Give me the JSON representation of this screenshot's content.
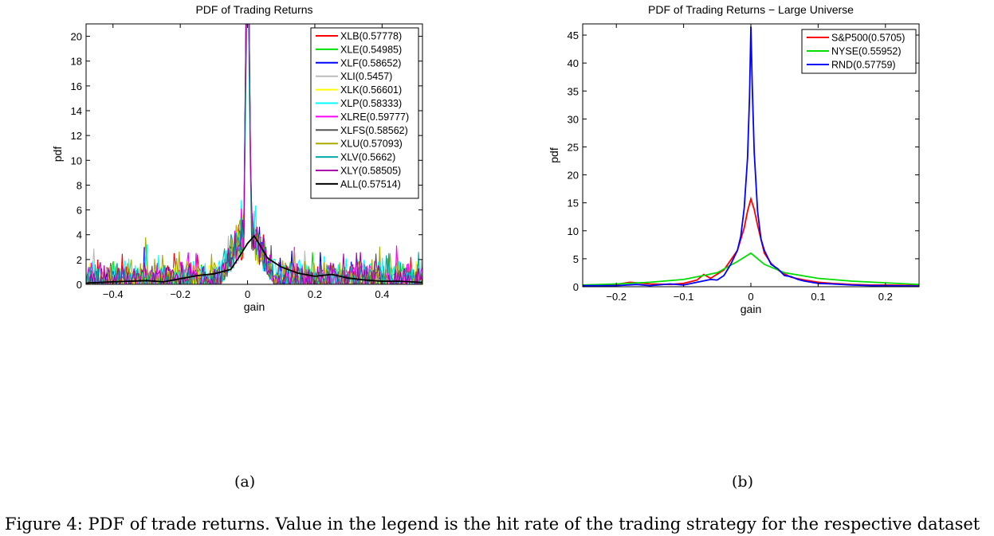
{
  "figure": {
    "caption": "Figure 4: PDF of trade returns. Value in the legend is the hit rate of the trading strategy for the respective dataset",
    "panel_a_label": "(a)",
    "panel_b_label": "(b)"
  },
  "chart_data": [
    {
      "type": "line",
      "title": "PDF of Trading Returns",
      "xlabel": "gain",
      "ylabel": "pdf",
      "xlim": [
        -0.48,
        0.52
      ],
      "ylim": [
        0,
        21
      ],
      "xticks": [
        -0.4,
        -0.2,
        0,
        0.2,
        0.4
      ],
      "xtick_labels": [
        "−0.4",
        "−0.2",
        "0",
        "0.2",
        "0.4"
      ],
      "yticks": [
        0,
        2,
        4,
        6,
        8,
        10,
        12,
        14,
        16,
        18,
        20
      ],
      "yscale": "linear",
      "grid": false,
      "legend_position": "top-right",
      "series": [
        {
          "name": "XLB(0.57778)",
          "color": "#ff0000",
          "noisy": true,
          "peak": 34,
          "noise_amp": 1.1,
          "seed": 11
        },
        {
          "name": "XLE(0.54985)",
          "color": "#00dd00",
          "noisy": true,
          "peak": 30,
          "noise_amp": 1.0,
          "seed": 23
        },
        {
          "name": "XLF(0.58652)",
          "color": "#0000ff",
          "noisy": true,
          "peak": 32,
          "noise_amp": 0.9,
          "seed": 37
        },
        {
          "name": "XLI(0.5457)",
          "color": "#bbbbbb",
          "noisy": true,
          "peak": 26,
          "noise_amp": 0.9,
          "seed": 41
        },
        {
          "name": "XLK(0.56601)",
          "color": "#ffff00",
          "noisy": true,
          "peak": 28,
          "noise_amp": 1.0,
          "seed": 53
        },
        {
          "name": "XLP(0.58333)",
          "color": "#00ffff",
          "noisy": true,
          "peak": 25,
          "noise_amp": 1.6,
          "seed": 67
        },
        {
          "name": "XLRE(0.59777)",
          "color": "#ff00ff",
          "noisy": true,
          "peak": 30,
          "noise_amp": 1.3,
          "seed": 79
        },
        {
          "name": "XLFS(0.58562)",
          "color": "#555555",
          "noisy": true,
          "peak": 27,
          "noise_amp": 0.8,
          "seed": 83
        },
        {
          "name": "XLU(0.57093)",
          "color": "#aaaa00",
          "noisy": true,
          "peak": 29,
          "noise_amp": 1.4,
          "seed": 97
        },
        {
          "name": "XLV(0.5662)",
          "color": "#00aaaa",
          "noisy": true,
          "peak": 31,
          "noise_amp": 1.2,
          "seed": 101
        },
        {
          "name": "XLY(0.58505)",
          "color": "#aa00aa",
          "noisy": true,
          "peak": 33,
          "noise_amp": 1.3,
          "seed": 113
        },
        {
          "name": "ALL(0.57514)",
          "color": "#000000",
          "noisy": false,
          "x": [
            -0.48,
            -0.4,
            -0.3,
            -0.25,
            -0.2,
            -0.15,
            -0.1,
            -0.05,
            -0.03,
            0,
            0.02,
            0.04,
            0.06,
            0.1,
            0.15,
            0.2,
            0.25,
            0.3,
            0.35,
            0.4,
            0.45,
            0.52
          ],
          "y": [
            0.1,
            0.2,
            0.3,
            0.2,
            0.45,
            0.7,
            0.85,
            1.2,
            2.0,
            3.3,
            3.9,
            3.0,
            2.1,
            1.4,
            0.9,
            0.65,
            0.8,
            0.5,
            0.35,
            0.25,
            0.25,
            0.15
          ]
        }
      ]
    },
    {
      "type": "line",
      "title": "PDF of Trading Returns − Large Universe",
      "xlabel": "gain",
      "ylabel": "pdf",
      "xlim": [
        -0.25,
        0.25
      ],
      "ylim": [
        0,
        47
      ],
      "xticks": [
        -0.2,
        -0.1,
        0,
        0.1,
        0.2
      ],
      "xtick_labels": [
        "−0.2",
        "−0.1",
        "0",
        "0.1",
        "0.2"
      ],
      "yticks": [
        0,
        5,
        10,
        15,
        20,
        25,
        30,
        35,
        40,
        45
      ],
      "yscale": "linear",
      "grid": false,
      "legend_position": "top-right",
      "series": [
        {
          "name": "S&P500(0.5705)",
          "color": "#ff0000",
          "x": [
            -0.25,
            -0.2,
            -0.18,
            -0.15,
            -0.12,
            -0.1,
            -0.08,
            -0.07,
            -0.06,
            -0.04,
            -0.02,
            -0.01,
            -0.005,
            0,
            0.005,
            0.01,
            0.02,
            0.03,
            0.04,
            0.05,
            0.06,
            0.08,
            0.1,
            0.12,
            0.15,
            0.18,
            0.2,
            0.25
          ],
          "y": [
            0.3,
            0.4,
            0.8,
            0.5,
            0.4,
            0.6,
            1.2,
            2.2,
            1.5,
            3.0,
            6.5,
            10.5,
            13.5,
            15.7,
            13.8,
            11.0,
            6.0,
            4.2,
            3.0,
            2.3,
            1.7,
            1.2,
            0.8,
            0.6,
            0.4,
            0.3,
            0.3,
            0.2
          ]
        },
        {
          "name": "NYSE(0.55952)",
          "color": "#00dd00",
          "x": [
            -0.25,
            -0.2,
            -0.15,
            -0.1,
            -0.05,
            -0.02,
            0,
            0.02,
            0.05,
            0.1,
            0.15,
            0.2,
            0.25
          ],
          "y": [
            0.3,
            0.5,
            0.8,
            1.3,
            2.5,
            4.5,
            6.0,
            4.0,
            2.5,
            1.5,
            1.0,
            0.7,
            0.4
          ]
        },
        {
          "name": "RND(0.57759)",
          "color": "#0000ff",
          "x": [
            -0.25,
            -0.2,
            -0.17,
            -0.15,
            -0.12,
            -0.1,
            -0.08,
            -0.06,
            -0.05,
            -0.04,
            -0.03,
            -0.02,
            -0.015,
            -0.01,
            -0.005,
            -0.002,
            0,
            0.002,
            0.005,
            0.01,
            0.015,
            0.02,
            0.03,
            0.04,
            0.05,
            0.06,
            0.07,
            0.08,
            0.1,
            0.12,
            0.15,
            0.18,
            0.2,
            0.25
          ],
          "y": [
            0.2,
            0.2,
            0.4,
            0.2,
            0.5,
            0.3,
            0.8,
            1.3,
            1.2,
            2.0,
            4.0,
            6.5,
            9.0,
            14.0,
            23.0,
            34.0,
            46.5,
            36.0,
            24.0,
            13.5,
            8.5,
            6.5,
            4.0,
            3.2,
            2.0,
            1.8,
            1.3,
            1.0,
            0.6,
            0.5,
            0.3,
            0.2,
            0.2,
            0.1
          ]
        }
      ]
    }
  ]
}
